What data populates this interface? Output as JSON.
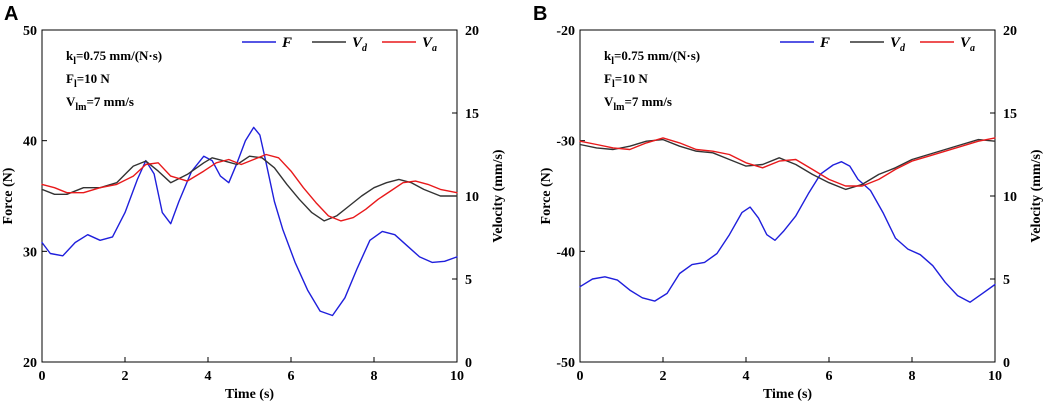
{
  "colors": {
    "F": "#1f1fdc",
    "Vd": "#333333",
    "Va": "#e8191b"
  },
  "chart_data": [
    {
      "panel_label": "A",
      "type": "line",
      "xlabel": "Time (s)",
      "ylabel_left": "Force (N)",
      "ylabel_right": "Velocity (mm/s)",
      "xlim": [
        0,
        10
      ],
      "ylim_left": [
        20,
        50
      ],
      "ylim_right": [
        0,
        20
      ],
      "xticks": [
        0,
        2,
        4,
        6,
        8,
        10
      ],
      "yticks_left": [
        20,
        30,
        40,
        50
      ],
      "yticks_right": [
        0,
        5,
        10,
        15,
        20
      ],
      "annotations": {
        "k": {
          "base": "k",
          "sub": "l",
          "rest": "=0.75 mm/(N·s)"
        },
        "F": {
          "base": "F",
          "sub": "l",
          "rest": "=10 N"
        },
        "V": {
          "base": "V",
          "sub": "lm",
          "rest": "=7 mm/s"
        }
      },
      "legend": [
        {
          "key": "F",
          "base": "F",
          "sub": ""
        },
        {
          "key": "Vd",
          "base": "V",
          "sub": "d"
        },
        {
          "key": "Va",
          "base": "V",
          "sub": "a"
        }
      ],
      "series": [
        {
          "name": "F",
          "axis": "left",
          "x": [
            0,
            0.2,
            0.5,
            0.8,
            1.1,
            1.4,
            1.7,
            2.0,
            2.3,
            2.5,
            2.7,
            2.9,
            3.1,
            3.3,
            3.6,
            3.9,
            4.1,
            4.3,
            4.5,
            4.7,
            4.9,
            5.1,
            5.25,
            5.4,
            5.6,
            5.8,
            6.1,
            6.4,
            6.7,
            7.0,
            7.3,
            7.6,
            7.9,
            8.2,
            8.5,
            8.8,
            9.1,
            9.4,
            9.7,
            10.0
          ],
          "values": [
            30.8,
            29.8,
            29.6,
            30.8,
            31.5,
            31.0,
            31.3,
            33.5,
            36.5,
            38.2,
            37.0,
            33.5,
            32.5,
            34.5,
            37.2,
            38.6,
            38.2,
            36.8,
            36.2,
            38.0,
            40.0,
            41.2,
            40.5,
            38.0,
            34.5,
            32.0,
            29.0,
            26.5,
            24.6,
            24.2,
            25.8,
            28.5,
            31.0,
            31.8,
            31.5,
            30.5,
            29.5,
            29.0,
            29.1,
            29.5
          ]
        },
        {
          "name": "Vd",
          "axis": "right",
          "x": [
            0,
            0.3,
            0.6,
            1.0,
            1.4,
            1.8,
            2.2,
            2.5,
            2.8,
            3.1,
            3.5,
            3.9,
            4.1,
            4.4,
            4.7,
            5.0,
            5.3,
            5.6,
            5.9,
            6.2,
            6.5,
            6.8,
            7.1,
            7.4,
            7.7,
            8.0,
            8.3,
            8.6,
            8.9,
            9.2,
            9.6,
            10.0
          ],
          "values": [
            10.4,
            10.1,
            10.1,
            10.5,
            10.5,
            10.8,
            11.8,
            12.1,
            11.5,
            10.8,
            11.3,
            12.0,
            12.3,
            12.1,
            11.9,
            12.4,
            12.3,
            11.7,
            10.7,
            9.8,
            9.0,
            8.5,
            8.8,
            9.4,
            10.0,
            10.5,
            10.8,
            11.0,
            10.8,
            10.4,
            10.0,
            10.0
          ]
        },
        {
          "name": "Va",
          "axis": "right",
          "x": [
            0,
            0.3,
            0.6,
            1.0,
            1.4,
            1.8,
            2.2,
            2.5,
            2.8,
            3.1,
            3.5,
            3.9,
            4.2,
            4.5,
            4.8,
            5.1,
            5.4,
            5.7,
            6.0,
            6.3,
            6.6,
            6.9,
            7.2,
            7.5,
            7.8,
            8.1,
            8.4,
            8.7,
            9.0,
            9.3,
            9.6,
            10.0
          ],
          "values": [
            10.7,
            10.5,
            10.2,
            10.2,
            10.5,
            10.7,
            11.2,
            11.9,
            12.0,
            11.2,
            10.9,
            11.5,
            12.0,
            12.2,
            11.9,
            12.2,
            12.5,
            12.3,
            11.5,
            10.5,
            9.6,
            8.8,
            8.5,
            8.7,
            9.2,
            9.8,
            10.3,
            10.8,
            10.9,
            10.7,
            10.4,
            10.2
          ]
        }
      ]
    },
    {
      "panel_label": "B",
      "type": "line",
      "xlabel": "Time (s)",
      "ylabel_left": "Force (N)",
      "ylabel_right": "Velocity (mm/s)",
      "xlim": [
        0,
        10
      ],
      "ylim_left": [
        -50,
        -20
      ],
      "ylim_right": [
        0,
        20
      ],
      "xticks": [
        0,
        2,
        4,
        6,
        8,
        10
      ],
      "yticks_left": [
        -50,
        -40,
        -30,
        -20
      ],
      "yticks_right": [
        0,
        5,
        10,
        15,
        20
      ],
      "annotations": {
        "k": {
          "base": "k",
          "sub": "l",
          "rest": "=0.75 mm/(N·s)"
        },
        "F": {
          "base": "F",
          "sub": "l",
          "rest": "=10 N"
        },
        "V": {
          "base": "V",
          "sub": "lm",
          "rest": "=7 mm/s"
        }
      },
      "legend": [
        {
          "key": "F",
          "base": "F",
          "sub": ""
        },
        {
          "key": "Vd",
          "base": "V",
          "sub": "d"
        },
        {
          "key": "Va",
          "base": "V",
          "sub": "a"
        }
      ],
      "series": [
        {
          "name": "F",
          "axis": "left",
          "x": [
            0,
            0.3,
            0.6,
            0.9,
            1.2,
            1.5,
            1.8,
            2.1,
            2.4,
            2.7,
            3.0,
            3.3,
            3.6,
            3.9,
            4.1,
            4.3,
            4.5,
            4.7,
            4.9,
            5.2,
            5.5,
            5.8,
            6.1,
            6.3,
            6.5,
            6.7,
            7.0,
            7.3,
            7.6,
            7.9,
            8.2,
            8.5,
            8.8,
            9.1,
            9.4,
            9.7,
            10.0
          ],
          "values": [
            -43.2,
            -42.5,
            -42.3,
            -42.6,
            -43.5,
            -44.2,
            -44.5,
            -43.8,
            -42.0,
            -41.2,
            -41.0,
            -40.2,
            -38.5,
            -36.5,
            -36.0,
            -37.0,
            -38.5,
            -39.0,
            -38.2,
            -36.8,
            -34.8,
            -33.0,
            -32.2,
            -31.9,
            -32.3,
            -33.5,
            -34.5,
            -36.5,
            -38.8,
            -39.8,
            -40.3,
            -41.3,
            -42.8,
            -44.0,
            -44.6,
            -43.8,
            -43.0
          ]
        },
        {
          "name": "Vd",
          "axis": "right",
          "x": [
            0,
            0.4,
            0.8,
            1.2,
            1.6,
            2.0,
            2.4,
            2.8,
            3.2,
            3.6,
            4.0,
            4.4,
            4.8,
            5.2,
            5.6,
            6.0,
            6.4,
            6.8,
            7.2,
            7.6,
            8.0,
            8.4,
            8.8,
            9.2,
            9.6,
            10.0
          ],
          "values": [
            13.1,
            12.9,
            12.8,
            13.0,
            13.3,
            13.4,
            13.0,
            12.7,
            12.6,
            12.2,
            11.8,
            11.9,
            12.3,
            11.9,
            11.3,
            10.8,
            10.4,
            10.7,
            11.3,
            11.7,
            12.2,
            12.5,
            12.8,
            13.1,
            13.4,
            13.3
          ]
        },
        {
          "name": "Va",
          "axis": "right",
          "x": [
            0,
            0.4,
            0.8,
            1.2,
            1.6,
            2.0,
            2.4,
            2.8,
            3.2,
            3.6,
            4.0,
            4.4,
            4.8,
            5.2,
            5.6,
            6.0,
            6.4,
            6.8,
            7.2,
            7.6,
            8.0,
            8.4,
            8.8,
            9.2,
            9.6,
            10.0
          ],
          "values": [
            13.3,
            13.1,
            12.9,
            12.8,
            13.2,
            13.5,
            13.2,
            12.8,
            12.7,
            12.5,
            12.0,
            11.7,
            12.1,
            12.2,
            11.6,
            11.0,
            10.6,
            10.6,
            11.0,
            11.6,
            12.1,
            12.4,
            12.7,
            13.0,
            13.3,
            13.5
          ]
        }
      ]
    }
  ]
}
